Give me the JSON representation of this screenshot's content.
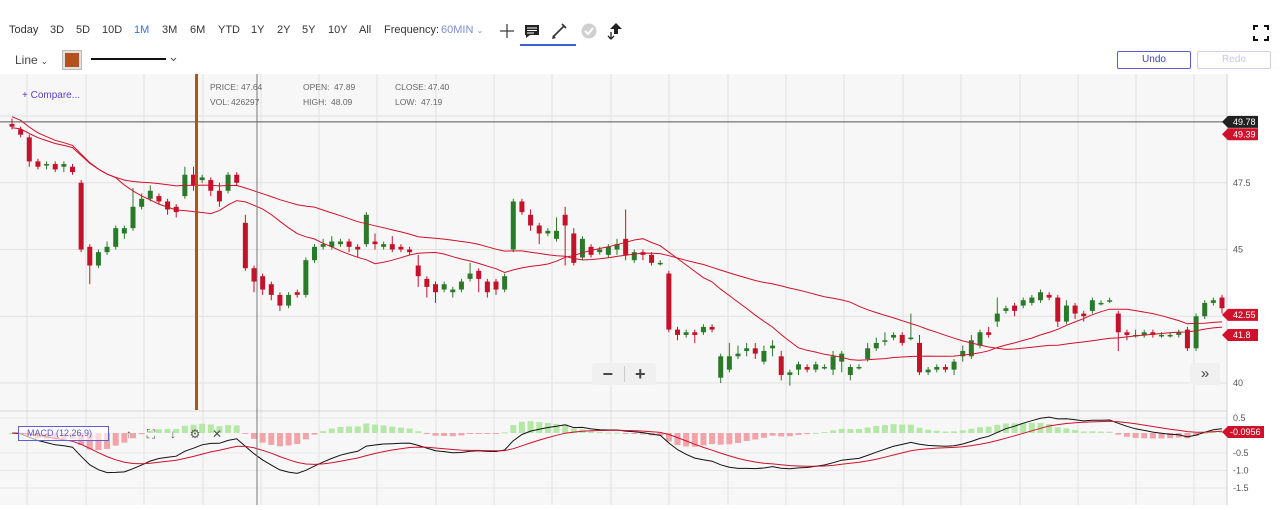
{
  "toolbar": {
    "ranges": [
      {
        "label": "Today",
        "active": false
      },
      {
        "label": "3D",
        "active": false
      },
      {
        "label": "5D",
        "active": false
      },
      {
        "label": "10D",
        "active": false
      },
      {
        "label": "1M",
        "active": true
      },
      {
        "label": "3M",
        "active": false
      },
      {
        "label": "6M",
        "active": false
      },
      {
        "label": "YTD",
        "active": false
      },
      {
        "label": "1Y",
        "active": false
      },
      {
        "label": "2Y",
        "active": false
      },
      {
        "label": "5Y",
        "active": false
      },
      {
        "label": "10Y",
        "active": false
      },
      {
        "label": "All",
        "active": false
      }
    ],
    "frequency_label": "Frequency:",
    "frequency_value": "60MIN",
    "icons": [
      "crosshair-icon",
      "annotation-icon",
      "pencil-icon",
      "check-icon",
      "share-icon"
    ],
    "fullscreen_icon": "fullscreen-icon"
  },
  "drawing": {
    "chart_type": "Line",
    "color": "#b5511b",
    "undo_label": "Undo",
    "redo_label": "Redo"
  },
  "chart": {
    "compare_label": "+ Compare...",
    "info": {
      "price_label": "PRICE:",
      "price": "47.64",
      "vol_label": "VOL:",
      "vol": "426297",
      "open_label": "OPEN:",
      "open": "47.89",
      "high_label": "HIGH:",
      "high": "48.09",
      "close_label": "CLOSE:",
      "close": "47.40",
      "low_label": "LOW:",
      "low": "47.19"
    },
    "price_ticks": [
      "47.5",
      "45",
      "42.5",
      "40"
    ],
    "price_badges": [
      {
        "label": "49.78",
        "color": "#222222"
      },
      {
        "label": "49.39",
        "color": "#d0112b"
      },
      {
        "label": "42.55",
        "color": "#d0112b"
      },
      {
        "label": "41.8",
        "color": "#d0112b"
      }
    ],
    "macd_label": "MACD (12,26,9)",
    "macd_ticks": [
      "0.5",
      "-0.5",
      "-1.0",
      "-1.5"
    ],
    "macd_badge": {
      "label": "-0.0956",
      "color": "#d0112b"
    },
    "up_color": "#2a7a2a",
    "down_color": "#c4122b",
    "ma_color": "#d0112b"
  },
  "chart_data": {
    "type": "candlestick",
    "y_range": [
      39.9,
      50.5
    ],
    "candles": [
      [
        49.7,
        49.6,
        49.9,
        49.5
      ],
      [
        49.5,
        49.3,
        49.6,
        49.2
      ],
      [
        49.2,
        48.3,
        49.3,
        48.1
      ],
      [
        48.3,
        48.1,
        48.4,
        48.0
      ],
      [
        48.2,
        48.2,
        48.3,
        48.0
      ],
      [
        48.2,
        48.0,
        48.3,
        47.9
      ],
      [
        48.1,
        48.2,
        48.3,
        47.9
      ],
      [
        48.1,
        47.9,
        48.2,
        47.8
      ],
      [
        47.5,
        45.0,
        47.6,
        44.9
      ],
      [
        45.1,
        44.4,
        45.2,
        43.7
      ],
      [
        44.4,
        44.9,
        45.0,
        44.3
      ],
      [
        44.9,
        45.1,
        45.3,
        44.8
      ],
      [
        45.1,
        45.8,
        45.9,
        45.0
      ],
      [
        45.6,
        45.8,
        45.9,
        45.4
      ],
      [
        45.8,
        46.6,
        47.3,
        45.7
      ],
      [
        46.6,
        46.9,
        47.1,
        46.5
      ],
      [
        46.9,
        47.2,
        47.4,
        46.8
      ],
      [
        47.0,
        46.8,
        47.1,
        46.7
      ],
      [
        46.8,
        46.5,
        46.9,
        46.3
      ],
      [
        46.6,
        46.4,
        46.7,
        46.2
      ],
      [
        47.0,
        47.8,
        48.1,
        46.9
      ],
      [
        47.8,
        47.4,
        48.1,
        47.2
      ],
      [
        47.6,
        47.7,
        47.8,
        47.5
      ],
      [
        47.6,
        47.2,
        47.7,
        47.0
      ],
      [
        47.2,
        46.8,
        47.5,
        46.6
      ],
      [
        47.2,
        47.8,
        47.9,
        47.1
      ],
      [
        47.8,
        47.5,
        47.9,
        47.4
      ],
      [
        46.0,
        44.3,
        46.3,
        44.2
      ],
      [
        44.3,
        43.8,
        44.4,
        43.4
      ],
      [
        44.0,
        43.5,
        44.1,
        43.3
      ],
      [
        43.7,
        43.3,
        43.8,
        43.1
      ],
      [
        43.3,
        42.9,
        43.4,
        42.7
      ],
      [
        42.9,
        43.3,
        43.4,
        42.8
      ],
      [
        43.4,
        43.3,
        43.5,
        43.2
      ],
      [
        43.3,
        44.6,
        44.7,
        43.2
      ],
      [
        44.6,
        45.1,
        45.2,
        44.5
      ],
      [
        45.1,
        45.2,
        45.4,
        45.0
      ],
      [
        45.1,
        45.3,
        45.5,
        45.0
      ],
      [
        45.2,
        45.3,
        45.4,
        45.1
      ],
      [
        45.3,
        45.1,
        45.4,
        44.9
      ],
      [
        45.1,
        45.0,
        45.2,
        44.7
      ],
      [
        45.2,
        46.3,
        46.4,
        45.1
      ],
      [
        45.3,
        45.2,
        45.6,
        45.0
      ],
      [
        45.1,
        45.2,
        45.3,
        45.0
      ],
      [
        45.2,
        45.0,
        45.5,
        44.9
      ],
      [
        45.1,
        45.0,
        45.2,
        44.9
      ],
      [
        45.0,
        44.9,
        45.1,
        44.8
      ],
      [
        44.4,
        44.0,
        44.8,
        43.6
      ],
      [
        43.9,
        43.6,
        44.0,
        43.2
      ],
      [
        43.7,
        43.4,
        43.8,
        43.0
      ],
      [
        43.5,
        43.7,
        43.8,
        43.4
      ],
      [
        43.4,
        43.5,
        43.6,
        43.2
      ],
      [
        43.5,
        43.8,
        43.9,
        43.4
      ],
      [
        43.9,
        44.1,
        44.5,
        43.8
      ],
      [
        44.2,
        43.9,
        44.3,
        43.4
      ],
      [
        43.8,
        43.4,
        43.9,
        43.2
      ],
      [
        43.8,
        43.5,
        43.9,
        43.3
      ],
      [
        43.5,
        44.0,
        44.1,
        43.4
      ],
      [
        45.0,
        46.8,
        46.9,
        44.9
      ],
      [
        46.8,
        46.4,
        46.9,
        46.3
      ],
      [
        46.3,
        45.9,
        46.5,
        45.7
      ],
      [
        45.9,
        45.6,
        46.0,
        45.2
      ],
      [
        45.6,
        45.7,
        45.8,
        45.5
      ],
      [
        45.4,
        45.7,
        46.2,
        45.3
      ],
      [
        46.3,
        45.9,
        46.6,
        44.4
      ],
      [
        45.6,
        44.5,
        45.8,
        44.4
      ],
      [
        44.7,
        45.4,
        45.5,
        44.6
      ],
      [
        45.1,
        44.8,
        45.2,
        44.7
      ],
      [
        44.9,
        45.0,
        45.1,
        44.8
      ],
      [
        44.8,
        45.1,
        45.2,
        44.7
      ],
      [
        45.0,
        45.2,
        45.4,
        44.8
      ],
      [
        45.4,
        44.8,
        46.5,
        44.6
      ],
      [
        44.6,
        44.9,
        45.0,
        44.5
      ],
      [
        44.9,
        44.8,
        45.0,
        44.6
      ],
      [
        44.8,
        44.5,
        44.9,
        44.4
      ],
      [
        44.5,
        44.5,
        44.6,
        44.4
      ],
      [
        44.1,
        42.0,
        44.2,
        41.9
      ],
      [
        42.0,
        41.8,
        42.1,
        41.6
      ],
      [
        41.8,
        41.9,
        42.0,
        41.7
      ],
      [
        41.9,
        41.8,
        42.0,
        41.5
      ],
      [
        41.9,
        42.1,
        42.2,
        41.8
      ],
      [
        42.1,
        42.0,
        42.2,
        41.9
      ],
      [
        40.2,
        41.0,
        41.1,
        40.0
      ],
      [
        40.5,
        41.0,
        41.5,
        40.4
      ],
      [
        41.0,
        41.1,
        41.4,
        40.9
      ],
      [
        41.2,
        41.3,
        41.5,
        41.0
      ],
      [
        41.3,
        41.1,
        41.5,
        40.9
      ],
      [
        40.8,
        41.2,
        41.4,
        40.7
      ],
      [
        41.3,
        41.4,
        41.6,
        41.0
      ],
      [
        41.0,
        40.3,
        41.2,
        40.1
      ],
      [
        40.3,
        40.4,
        40.5,
        39.9
      ],
      [
        40.5,
        40.7,
        40.8,
        40.3
      ],
      [
        40.6,
        40.5,
        40.7,
        40.4
      ],
      [
        40.5,
        40.7,
        40.8,
        40.4
      ],
      [
        40.6,
        40.6,
        40.7,
        40.5
      ],
      [
        40.5,
        41.0,
        41.2,
        40.3
      ],
      [
        40.8,
        41.1,
        41.2,
        40.4
      ],
      [
        40.3,
        40.6,
        40.7,
        40.1
      ],
      [
        40.6,
        40.6,
        40.7,
        40.5
      ],
      [
        40.9,
        41.3,
        41.5,
        40.8
      ],
      [
        41.3,
        41.5,
        41.7,
        41.2
      ],
      [
        41.6,
        41.6,
        41.9,
        41.4
      ],
      [
        41.7,
        41.8,
        41.9,
        41.6
      ],
      [
        41.8,
        41.5,
        41.9,
        41.4
      ],
      [
        41.7,
        41.7,
        42.6,
        41.6
      ],
      [
        41.5,
        40.4,
        41.8,
        40.3
      ],
      [
        40.4,
        40.5,
        40.6,
        40.3
      ],
      [
        40.5,
        40.6,
        40.7,
        40.4
      ],
      [
        40.6,
        40.5,
        40.7,
        40.4
      ],
      [
        40.5,
        40.8,
        40.9,
        40.3
      ],
      [
        41.0,
        41.2,
        41.4,
        40.8
      ],
      [
        41.0,
        41.6,
        41.8,
        40.9
      ],
      [
        41.4,
        41.9,
        42.0,
        41.3
      ],
      [
        41.9,
        41.8,
        42.1,
        41.7
      ],
      [
        42.3,
        42.6,
        43.2,
        42.1
      ],
      [
        42.7,
        42.8,
        42.9,
        42.6
      ],
      [
        42.9,
        42.7,
        43.0,
        42.5
      ],
      [
        42.9,
        43.1,
        43.2,
        42.8
      ],
      [
        43.0,
        43.2,
        43.3,
        42.9
      ],
      [
        43.1,
        43.4,
        43.5,
        43.0
      ],
      [
        43.3,
        43.2,
        43.4,
        43.1
      ],
      [
        43.2,
        42.3,
        43.3,
        42.1
      ],
      [
        42.3,
        42.9,
        43.1,
        42.2
      ],
      [
        42.9,
        42.6,
        43.0,
        42.4
      ],
      [
        42.6,
        42.5,
        42.7,
        42.3
      ],
      [
        42.7,
        43.1,
        43.2,
        42.6
      ],
      [
        43.0,
        43.0,
        43.1,
        42.9
      ],
      [
        43.1,
        43.1,
        43.2,
        43.0
      ],
      [
        42.6,
        41.9,
        42.7,
        41.2
      ],
      [
        41.9,
        41.8,
        42.0,
        41.6
      ],
      [
        41.8,
        41.8,
        42.0,
        41.7
      ],
      [
        41.8,
        41.9,
        42.0,
        41.7
      ],
      [
        41.9,
        41.8,
        42.0,
        41.7
      ],
      [
        41.8,
        41.8,
        41.9,
        41.7
      ],
      [
        41.8,
        41.8,
        41.9,
        41.7
      ],
      [
        41.8,
        41.9,
        42.0,
        41.7
      ],
      [
        42.0,
        41.3,
        42.1,
        41.2
      ],
      [
        41.3,
        42.5,
        42.6,
        41.2
      ],
      [
        42.5,
        43.0,
        43.1,
        42.4
      ],
      [
        43.0,
        43.1,
        43.2,
        42.9
      ],
      [
        43.2,
        42.8,
        43.3,
        42.6
      ]
    ]
  }
}
